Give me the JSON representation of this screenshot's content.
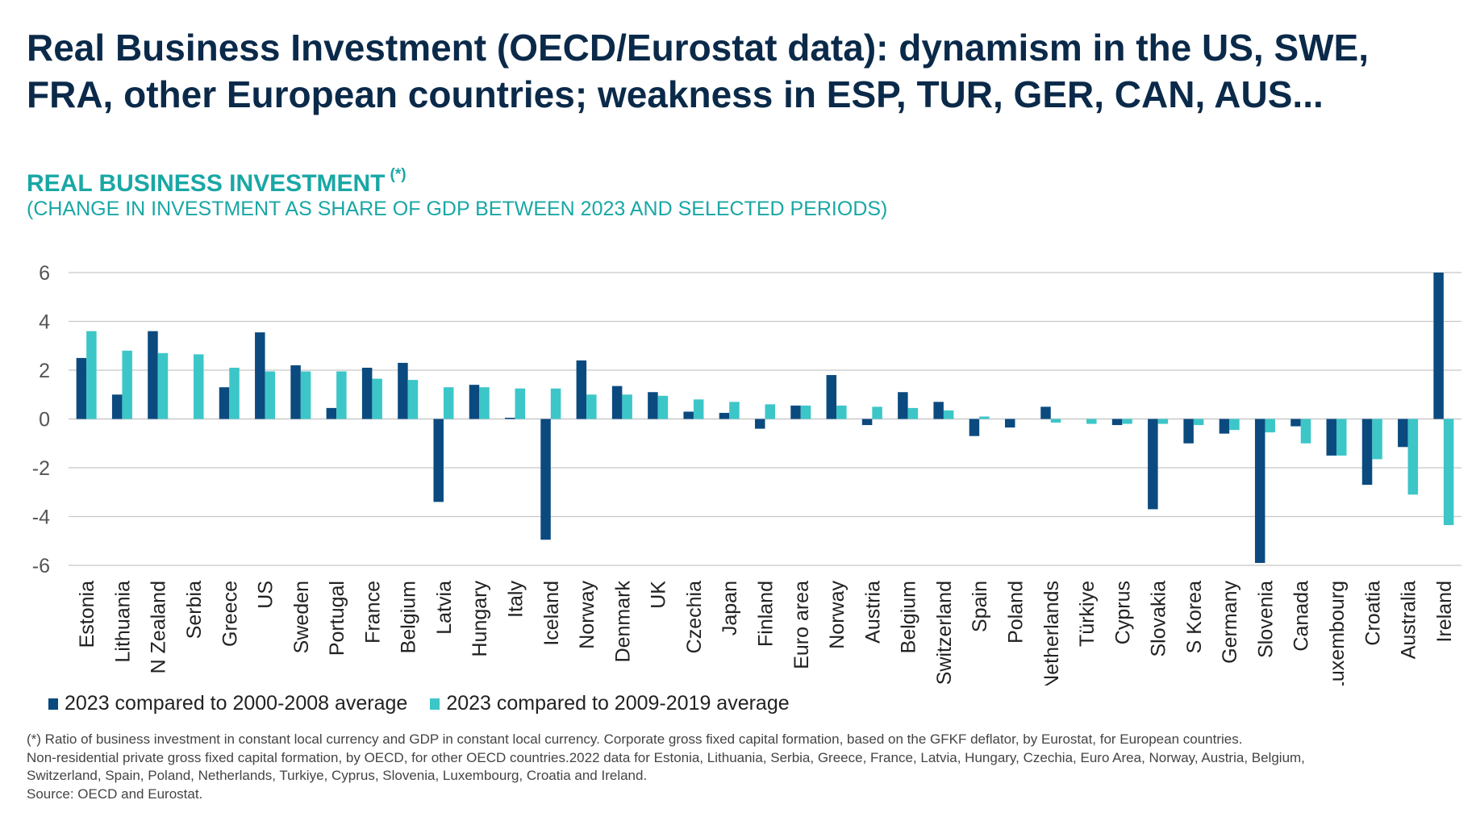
{
  "header": {
    "title_line1": "Real Business Investment (OECD/Eurostat data): dynamism in the US, SWE,",
    "title_line2": "FRA, other European countries; weakness in ESP, TUR, GER, CAN, AUS...",
    "subtitle": "REAL BUSINESS INVESTMENT",
    "subtitle_mark": "(*)",
    "subtitle2": "(CHANGE IN INVESTMENT AS SHARE OF GDP BETWEEN 2023 AND SELECTED PERIODS)"
  },
  "colors": {
    "series1": "#0b4a7f",
    "series2": "#3cc6c8",
    "grid": "#c8c8c8",
    "title": "#0b2a4a",
    "accent": "#19a7a5"
  },
  "chart_data": {
    "type": "bar",
    "title": "REAL BUSINESS INVESTMENT",
    "ylim": [
      -6,
      6
    ],
    "yticks": [
      6,
      4,
      2,
      0,
      -2,
      -4,
      -6
    ],
    "ytick_labels": [
      "6",
      "4",
      "2",
      "0",
      "-2",
      "-4",
      "-6"
    ],
    "grid": true,
    "legend_position": "bottom-left",
    "categories": [
      "Estonia",
      "Lithuania",
      "N Zealand",
      "Serbia",
      "Greece",
      "US",
      "Sweden",
      "Portugal",
      "France",
      "Belgium",
      "Latvia",
      "Hungary",
      "Italy",
      "Iceland",
      "Norway",
      "Denmark",
      "UK",
      "Czechia",
      "Japan",
      "Finland",
      "Euro area",
      "Norway",
      "Austria",
      "Belgium",
      "Switzerland",
      "Spain",
      "Poland",
      "Netherlands",
      "Türkiye",
      "Cyprus",
      "Slovakia",
      "S Korea",
      "Germany",
      "Slovenia",
      "Canada",
      "Luxembourg",
      "Croatia",
      "Australia",
      "Ireland"
    ],
    "series": [
      {
        "name": "2023 compared to 2000-2008 average",
        "values": [
          2.5,
          1.0,
          3.6,
          0,
          1.3,
          3.55,
          2.2,
          0.45,
          2.1,
          2.3,
          -3.4,
          1.4,
          0.05,
          -4.95,
          2.4,
          1.35,
          1.1,
          0.3,
          0.25,
          -0.4,
          0.55,
          1.8,
          -0.25,
          1.1,
          0.7,
          -0.7,
          -0.35,
          0.5,
          0,
          -0.25,
          -3.7,
          -1.0,
          -0.6,
          -5.9,
          -0.3,
          -1.5,
          -2.7,
          -1.15,
          6.0
        ]
      },
      {
        "name": "2023 compared to 2009-2019 average",
        "values": [
          3.6,
          2.8,
          2.7,
          2.65,
          2.1,
          1.95,
          1.95,
          1.95,
          1.65,
          1.6,
          1.3,
          1.3,
          1.25,
          1.25,
          1.0,
          1.0,
          0.95,
          0.8,
          0.7,
          0.6,
          0.55,
          0.55,
          0.5,
          0.45,
          0.35,
          0.1,
          0,
          -0.15,
          -0.2,
          -0.2,
          -0.2,
          -0.25,
          -0.45,
          -0.55,
          -1.0,
          -1.5,
          -1.65,
          -3.1,
          -4.35
        ]
      }
    ]
  },
  "footnote": {
    "line1": "(*) Ratio of business investment in constant local currency and GDP in constant local currency. Corporate gross fixed capital formation, based on the GFKF deflator, by Eurostat, for European countries.",
    "line2": "Non-residential private gross fixed capital formation, by OECD, for other OECD countries.2022 data for Estonia, Lithuania, Serbia, Greece, France, Latvia, Hungary, Czechia, Euro Area, Norway, Austria, Belgium,",
    "line3": "Switzerland, Spain, Poland, Netherlands, Turkiye, Cyprus, Slovenia, Luxembourg, Croatia and Ireland.",
    "line4": "Source: OECD and Eurostat."
  }
}
